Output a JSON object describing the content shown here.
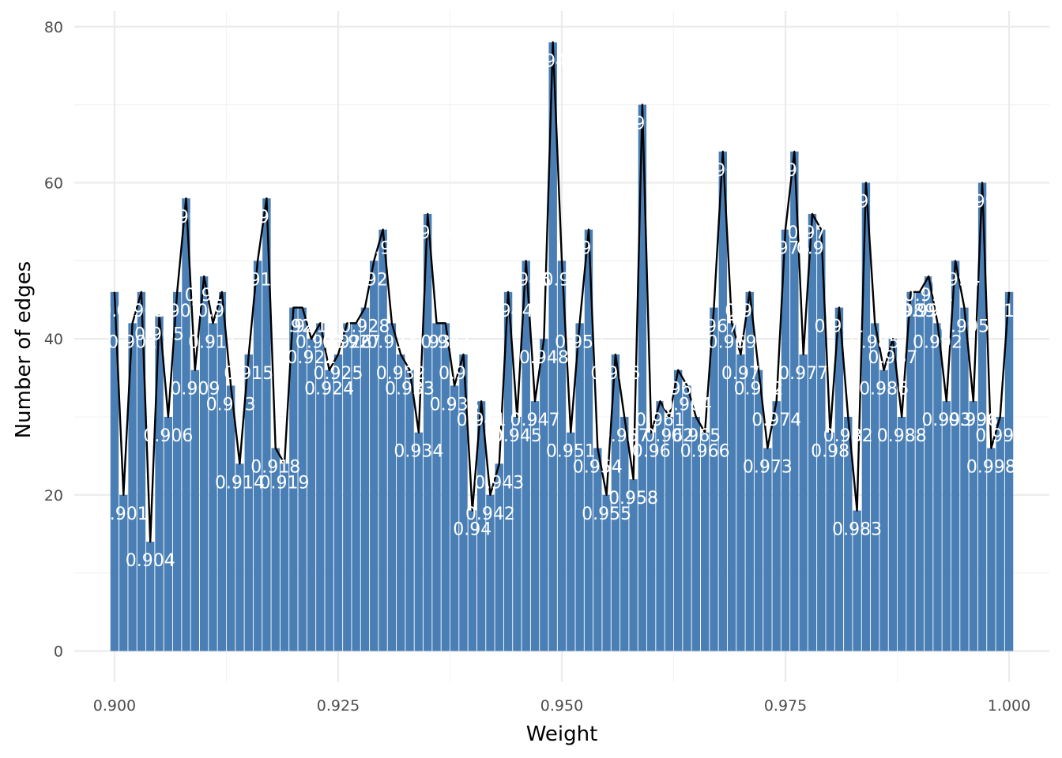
{
  "chart_data": {
    "type": "bar",
    "xlabel": "Weight",
    "ylabel": "Number of edges",
    "xlim": [
      0.8955,
      1.0045
    ],
    "ylim": [
      -4,
      82
    ],
    "x_ticks": [
      "0.900",
      "0.925",
      "0.950",
      "0.975",
      "1.000"
    ],
    "y_ticks": [
      "0",
      "20",
      "40",
      "60",
      "80"
    ],
    "x_tick_values": [
      0.9,
      0.925,
      0.95,
      0.975,
      1.0
    ],
    "y_tick_values": [
      0,
      20,
      40,
      60,
      80
    ],
    "grid": true,
    "bar_color": "#4a7fb5",
    "line_color": "#000000",
    "x": [
      0.9,
      0.901,
      0.902,
      0.903,
      0.904,
      0.905,
      0.906,
      0.907,
      0.908,
      0.909,
      0.91,
      0.911,
      0.912,
      0.913,
      0.914,
      0.915,
      0.916,
      0.917,
      0.918,
      0.919,
      0.92,
      0.921,
      0.922,
      0.923,
      0.924,
      0.925,
      0.926,
      0.927,
      0.928,
      0.929,
      0.93,
      0.931,
      0.932,
      0.933,
      0.934,
      0.935,
      0.936,
      0.937,
      0.938,
      0.939,
      0.94,
      0.941,
      0.942,
      0.943,
      0.944,
      0.945,
      0.946,
      0.947,
      0.948,
      0.949,
      0.95,
      0.951,
      0.952,
      0.953,
      0.954,
      0.955,
      0.956,
      0.957,
      0.958,
      0.959,
      0.96,
      0.961,
      0.962,
      0.963,
      0.964,
      0.965,
      0.966,
      0.967,
      0.968,
      0.969,
      0.97,
      0.971,
      0.972,
      0.973,
      0.974,
      0.975,
      0.976,
      0.977,
      0.978,
      0.979,
      0.98,
      0.981,
      0.982,
      0.983,
      0.984,
      0.985,
      0.986,
      0.987,
      0.988,
      0.989,
      0.99,
      0.991,
      0.992,
      0.993,
      0.994,
      0.995,
      0.996,
      0.997,
      0.998,
      0.999,
      1.0
    ],
    "values": [
      46,
      20,
      42,
      46,
      14,
      43,
      30,
      46,
      58,
      36,
      48,
      42,
      46,
      34,
      24,
      38,
      50,
      58,
      26,
      24,
      44,
      44,
      40,
      42,
      36,
      38,
      42,
      42,
      44,
      50,
      54,
      42,
      38,
      36,
      28,
      56,
      42,
      42,
      34,
      38,
      18,
      32,
      20,
      24,
      46,
      30,
      50,
      32,
      40,
      78,
      50,
      28,
      42,
      54,
      26,
      20,
      38,
      30,
      22,
      70,
      28,
      32,
      30,
      36,
      34,
      30,
      28,
      44,
      64,
      42,
      38,
      46,
      36,
      26,
      32,
      54,
      64,
      38,
      56,
      54,
      28,
      44,
      30,
      18,
      60,
      42,
      36,
      40,
      30,
      46,
      46,
      48,
      42,
      32,
      50,
      44,
      32,
      60,
      26,
      30,
      46
    ],
    "data_labels": [
      "0.9",
      "0.901",
      "0.902",
      "0.903",
      "0.904",
      "0.905",
      "0.906",
      "0.907",
      "0.908",
      "0.909",
      "0.91",
      "0.911",
      "0.912",
      "0.913",
      "0.914",
      "0.915",
      "0.916",
      "0.917",
      "0.918",
      "0.919",
      "0.92",
      "0.921",
      "0.922",
      "0.923",
      "0.924",
      "0.925",
      "0.926",
      "0.927",
      "0.928",
      "0.929",
      "0.93",
      "0.931",
      "0.932",
      "0.933",
      "0.934",
      "0.935",
      "0.936",
      "0.937",
      "0.938",
      "0.939",
      "0.94",
      "0.941",
      "0.942",
      "0.943",
      "0.944",
      "0.945",
      "0.946",
      "0.947",
      "0.948",
      "0.949",
      "0.95",
      "0.951",
      "0.952",
      "0.953",
      "0.954",
      "0.955",
      "0.956",
      "0.957",
      "0.958",
      "0.959",
      "0.96",
      "0.961",
      "0.962",
      "0.963",
      "0.964",
      "0.965",
      "0.966",
      "0.967",
      "0.968",
      "0.969",
      "0.97",
      "0.971",
      "0.972",
      "0.973",
      "0.974",
      "0.975",
      "0.976",
      "0.977",
      "0.978",
      "0.979",
      "0.98",
      "0.981",
      "0.982",
      "0.983",
      "0.984",
      "0.985",
      "0.986",
      "0.987",
      "0.988",
      "0.989",
      "0.99",
      "0.991",
      "0.992",
      "0.993",
      "0.994",
      "0.995",
      "0.996",
      "0.997",
      "0.998",
      "0.999",
      "1"
    ]
  }
}
